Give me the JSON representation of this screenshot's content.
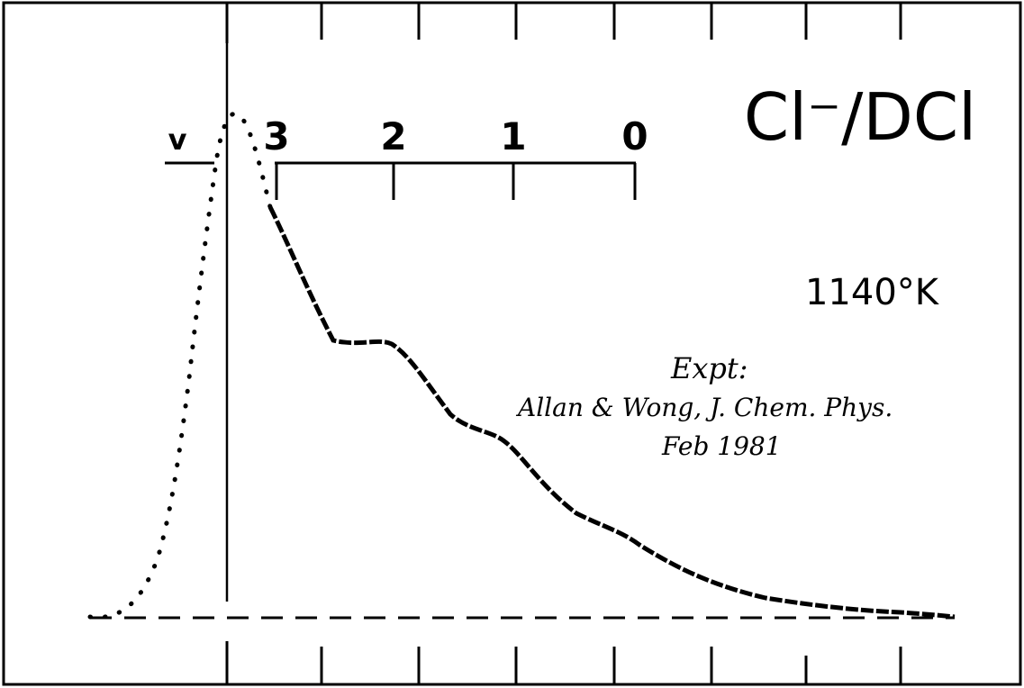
{
  "title": "Cl⁻/DCl",
  "temperature": "1140°K",
  "scale": {
    "axis_label": "v",
    "levels": [
      "3",
      "2",
      "1",
      "0"
    ]
  },
  "annotation": {
    "lines": [
      "Expt:",
      "Allan & Wong, J. Chem. Phys.",
      "Feb 1981"
    ]
  }
}
